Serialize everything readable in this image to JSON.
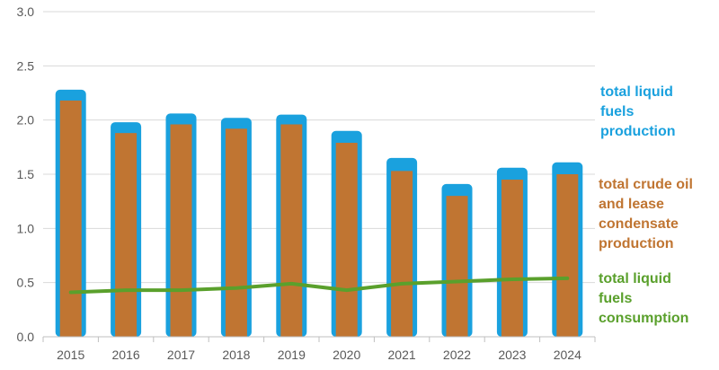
{
  "chart_data": {
    "type": "bar",
    "categories": [
      "2015",
      "2016",
      "2017",
      "2018",
      "2019",
      "2020",
      "2021",
      "2022",
      "2023",
      "2024"
    ],
    "series": [
      {
        "name": "total liquid fuels production",
        "kind": "bar",
        "color": "#1aa1de",
        "values": [
          2.28,
          1.98,
          2.06,
          2.02,
          2.05,
          1.9,
          1.65,
          1.41,
          1.56,
          1.61
        ]
      },
      {
        "name": "total crude oil and lease condensate production",
        "kind": "bar",
        "color": "#c07532",
        "values": [
          2.18,
          1.88,
          1.96,
          1.92,
          1.96,
          1.79,
          1.53,
          1.3,
          1.45,
          1.5
        ]
      },
      {
        "name": "total liquid fuels consumption",
        "kind": "line",
        "color": "#5aa02c",
        "values": [
          0.41,
          0.43,
          0.43,
          0.45,
          0.49,
          0.43,
          0.49,
          0.51,
          0.53,
          0.54
        ]
      }
    ],
    "yticks": [
      "0.0",
      "0.5",
      "1.0",
      "1.5",
      "2.0",
      "2.5",
      "3.0"
    ],
    "ylim": [
      0,
      3
    ],
    "grid": true,
    "legend_placement": "right",
    "title": "",
    "xlabel": "",
    "ylabel": ""
  },
  "legend": {
    "production": "total liquid\nfuels\nproduction",
    "crude": "total crude oil\nand lease\ncondensate\nproduction",
    "consumption": "total liquid\nfuels\nconsumption"
  }
}
